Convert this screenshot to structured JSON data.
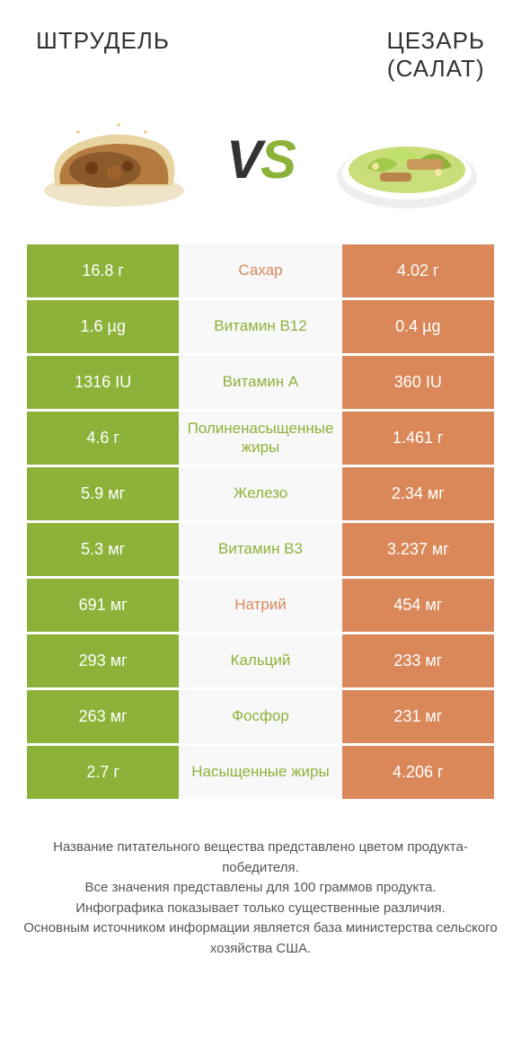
{
  "header": {
    "left_title": "ШТРУДЕЛЬ",
    "right_title": "ЦЕЗАРЬ",
    "right_subtitle": "(САЛАТ)"
  },
  "vs": {
    "v": "V",
    "s": "S"
  },
  "colors": {
    "green": "#8db239",
    "orange": "#da885a",
    "mid_bg": "#f8f8f8",
    "text_dark": "#333333"
  },
  "rows": [
    {
      "left": "16.8 г",
      "mid": "Сахар",
      "right": "4.02 г",
      "mid_color": "orange"
    },
    {
      "left": "1.6 µg",
      "mid": "Витамин B12",
      "right": "0.4 µg",
      "mid_color": "green"
    },
    {
      "left": "1316 IU",
      "mid": "Витамин A",
      "right": "360 IU",
      "mid_color": "green"
    },
    {
      "left": "4.6 г",
      "mid": "Полиненасыщенные жиры",
      "right": "1.461 г",
      "mid_color": "green"
    },
    {
      "left": "5.9 мг",
      "mid": "Железо",
      "right": "2.34 мг",
      "mid_color": "green"
    },
    {
      "left": "5.3 мг",
      "mid": "Витамин B3",
      "right": "3.237 мг",
      "mid_color": "green"
    },
    {
      "left": "691 мг",
      "mid": "Натрий",
      "right": "454 мг",
      "mid_color": "orange"
    },
    {
      "left": "293 мг",
      "mid": "Кальций",
      "right": "233 мг",
      "mid_color": "green"
    },
    {
      "left": "263 мг",
      "mid": "Фосфор",
      "right": "231 мг",
      "mid_color": "green"
    },
    {
      "left": "2.7 г",
      "mid": "Насыщенные жиры",
      "right": "4.206 г",
      "mid_color": "green"
    }
  ],
  "footer": {
    "line1": "Название питательного вещества представлено цветом продукта-победителя.",
    "line2": "Все значения представлены для 100 граммов продукта.",
    "line3": "Инфографика показывает только существенные различия.",
    "line4": "Основным источником информации является база министерства сельского хозяйства США."
  }
}
